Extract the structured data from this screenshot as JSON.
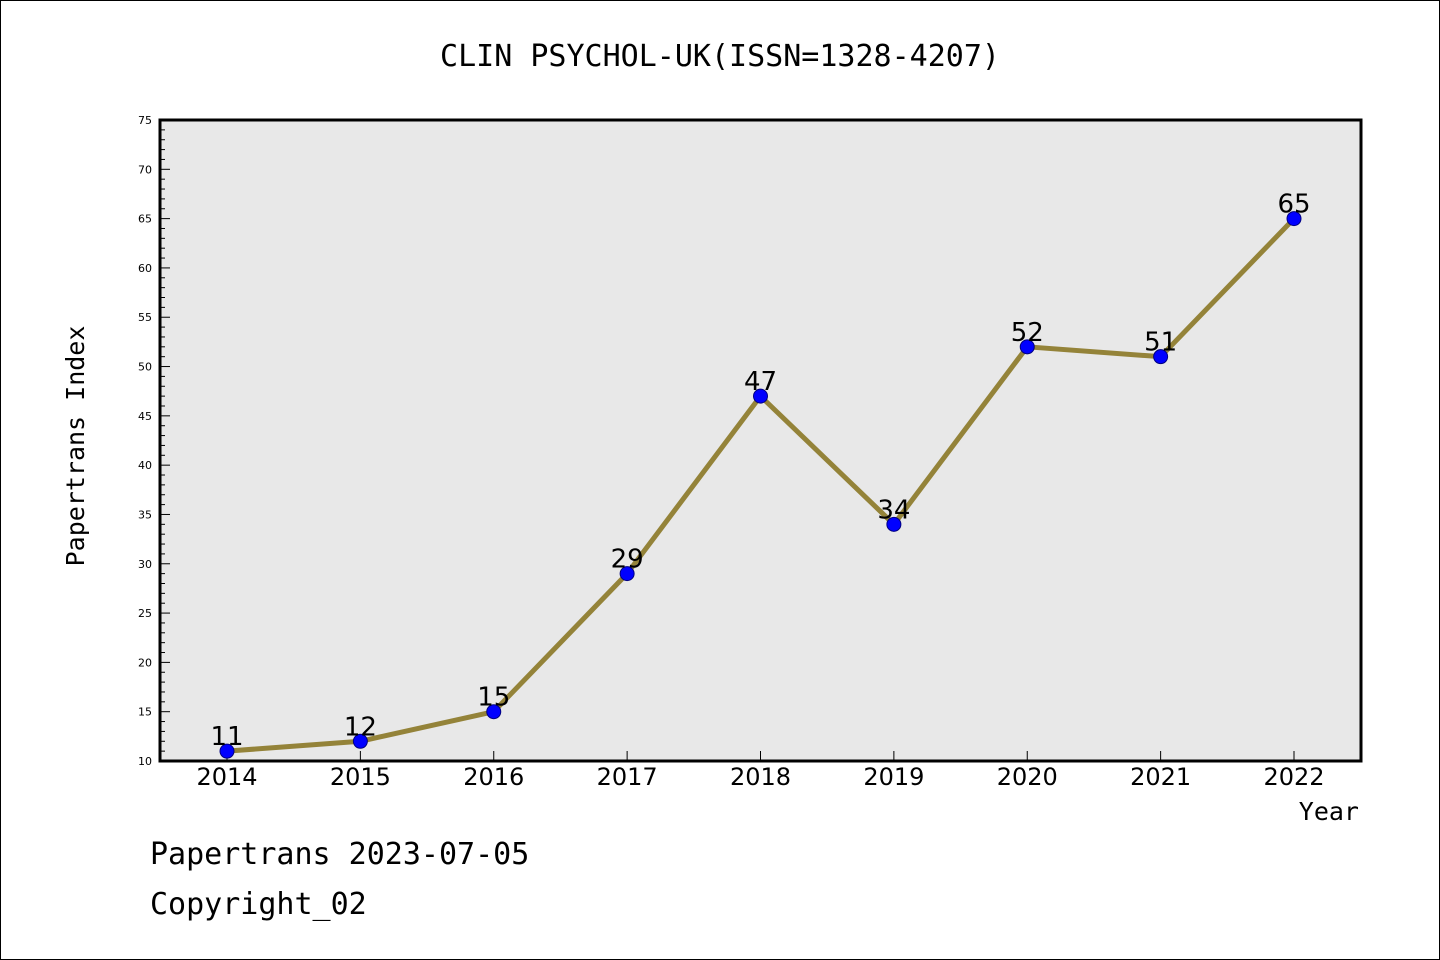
{
  "chart_data": {
    "type": "line",
    "title": "CLIN PSYCHOL-UK(ISSN=1328-4207)",
    "xlabel": "Year",
    "ylabel": "Papertrans Index",
    "categories": [
      "2014",
      "2015",
      "2016",
      "2017",
      "2018",
      "2019",
      "2020",
      "2021",
      "2022"
    ],
    "values": [
      11,
      12,
      15,
      29,
      47,
      34,
      52,
      51,
      65
    ],
    "data_labels": [
      "11",
      "12",
      "15",
      "29",
      "47",
      "34",
      "52",
      "51",
      "65"
    ],
    "ylim": [
      10,
      75
    ],
    "y_ticks": [
      "10",
      "15",
      "20",
      "25",
      "30",
      "35",
      "40",
      "45",
      "50",
      "55",
      "60",
      "65",
      "70",
      "75"
    ],
    "grid": false,
    "legend": "none"
  },
  "footer": {
    "line1": "Papertrans 2023-07-05",
    "line2": "Copyright_02"
  },
  "colors": {
    "plot_background": "#e8e8e8",
    "line": "#948339",
    "marker": "#0000ff",
    "marker_edge": "#000080",
    "frame": "#000000"
  }
}
